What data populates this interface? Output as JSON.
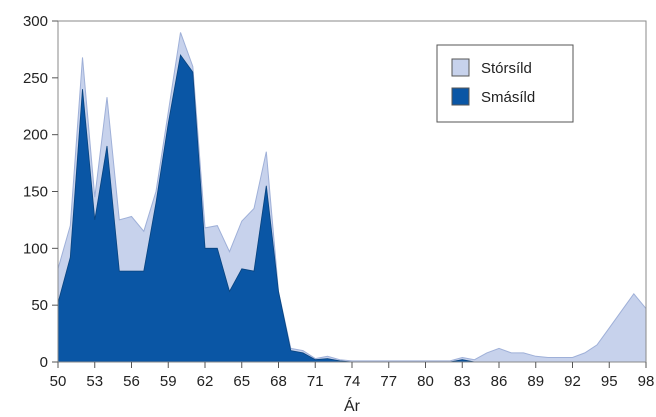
{
  "chart_data": {
    "type": "area",
    "title": "",
    "xlabel": "Ár",
    "ylabel": "",
    "xlim": [
      50,
      98
    ],
    "ylim": [
      0,
      300
    ],
    "x_ticks": [
      50,
      53,
      56,
      59,
      62,
      65,
      68,
      71,
      74,
      77,
      80,
      83,
      86,
      89,
      92,
      95,
      98
    ],
    "y_ticks": [
      0,
      50,
      100,
      150,
      200,
      250,
      300
    ],
    "stacked": true,
    "grid": false,
    "legend_position": "top-right",
    "x": [
      50,
      51,
      52,
      53,
      54,
      55,
      56,
      57,
      58,
      59,
      60,
      61,
      62,
      63,
      64,
      65,
      66,
      67,
      68,
      69,
      70,
      71,
      72,
      73,
      74,
      75,
      76,
      77,
      78,
      79,
      80,
      81,
      82,
      83,
      84,
      85,
      86,
      87,
      88,
      89,
      90,
      91,
      92,
      93,
      94,
      95,
      96,
      97,
      98
    ],
    "series": [
      {
        "name": "Smásíld",
        "color": "#0a56a5",
        "values": [
          52,
          92,
          240,
          125,
          190,
          80,
          80,
          80,
          140,
          210,
          270,
          255,
          100,
          100,
          62,
          82,
          80,
          155,
          62,
          10,
          8,
          2,
          3,
          1,
          0,
          0,
          0,
          0,
          0,
          0,
          0,
          0,
          0,
          2,
          0,
          0,
          0,
          0,
          0,
          0,
          0,
          0,
          0,
          0,
          0,
          0,
          0,
          0,
          0
        ]
      },
      {
        "name": "Stórsíld",
        "color": "#c7d2ec",
        "values": [
          30,
          28,
          28,
          20,
          43,
          45,
          48,
          35,
          10,
          10,
          20,
          5,
          18,
          20,
          35,
          42,
          55,
          30,
          0,
          2,
          2,
          1,
          2,
          1,
          1,
          1,
          1,
          1,
          1,
          1,
          1,
          1,
          1,
          2,
          2,
          8,
          12,
          8,
          8,
          5,
          4,
          4,
          4,
          8,
          15,
          30,
          45,
          60,
          47
        ]
      }
    ]
  }
}
